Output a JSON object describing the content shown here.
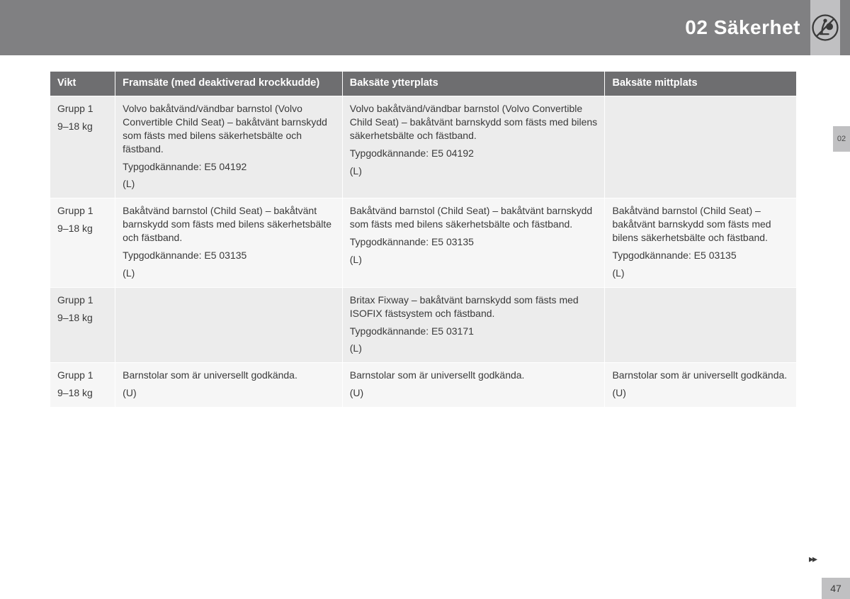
{
  "header": {
    "title": "02 Säkerhet",
    "side_tab": "02",
    "page_number": "47",
    "continue_marker": "▸▸"
  },
  "table": {
    "columns": [
      {
        "label": "Vikt",
        "class": "col0"
      },
      {
        "label": "Framsäte (med deaktiverad krockkudde)",
        "class": "col1"
      },
      {
        "label": "Baksäte ytterplats",
        "class": "col2"
      },
      {
        "label": "Baksäte mittplats",
        "class": "col3"
      }
    ],
    "rows": [
      {
        "cells": [
          [
            "Grupp 1",
            "9–18 kg"
          ],
          [
            "Volvo bakåtvänd/vändbar barnstol (Volvo Convertible Child Seat) – bakåtvänt barnskydd som fästs med bilens säkerhetsbälte och fästband.",
            "Typgodkännande: E5 04192",
            "(L)"
          ],
          [
            "Volvo bakåtvänd/vändbar barnstol (Volvo Convertible Child Seat) – bakåtvänt barnskydd som fästs med bilens säkerhetsbälte och fästband.",
            "Typgodkännande: E5 04192",
            "(L)"
          ],
          []
        ]
      },
      {
        "cells": [
          [
            "Grupp 1",
            "9–18 kg"
          ],
          [
            "Bakåtvänd barnstol (Child Seat) – bakåtvänt barnskydd som fästs med bilens säkerhetsbälte och fästband.",
            "Typgodkännande: E5 03135",
            "(L)"
          ],
          [
            "Bakåtvänd barnstol (Child Seat) – bakåtvänt barnskydd som fästs med bilens säkerhetsbälte och fästband.",
            "Typgodkännande: E5 03135",
            "(L)"
          ],
          [
            "Bakåtvänd barnstol (Child Seat) – bakåtvänt barnskydd som fästs med bilens säkerhetsbälte och fästband.",
            "Typgodkännande: E5 03135",
            "(L)"
          ]
        ]
      },
      {
        "cells": [
          [
            "Grupp 1",
            "9–18 kg"
          ],
          [],
          [
            "Britax Fixway – bakåtvänt barnskydd som fästs med ISOFIX fästsystem och fästband.",
            "Typgodkännande: E5 03171",
            "(L)"
          ],
          []
        ]
      },
      {
        "cells": [
          [
            "Grupp 1",
            "9–18 kg"
          ],
          [
            "Barnstolar som är universellt godkända.",
            "(U)"
          ],
          [
            "Barnstolar som är universellt godkända.",
            "(U)"
          ],
          [
            "Barnstolar som är universellt godkända.",
            "(U)"
          ]
        ]
      }
    ]
  },
  "colors": {
    "header_bg": "#808082",
    "header_text": "#ffffff",
    "side_bg": "#c0c0c2",
    "th_bg": "#6e6e70",
    "row_odd": "#ececec",
    "row_even": "#f6f6f6",
    "text": "#3a3a3a"
  },
  "typography": {
    "header_title_pt": 28,
    "th_pt": 14.5,
    "td_pt": 14
  }
}
